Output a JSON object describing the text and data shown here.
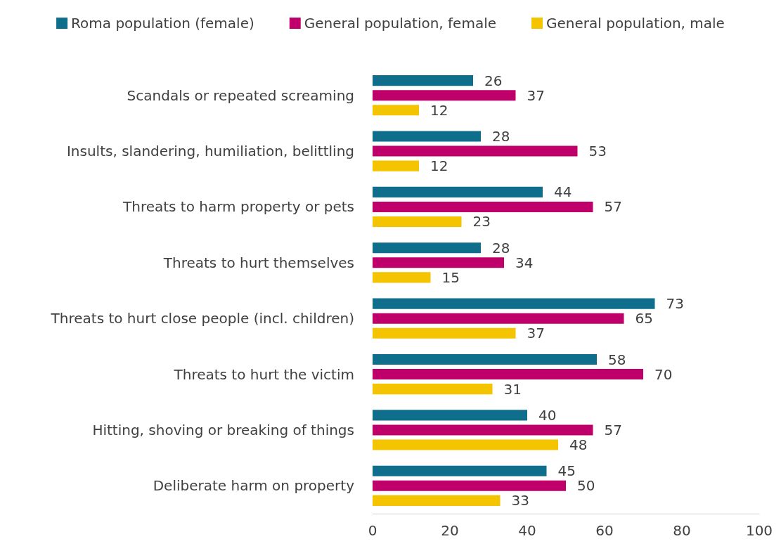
{
  "chart_data": {
    "type": "bar",
    "orientation": "horizontal",
    "categories": [
      "Scandals or repeated screaming",
      "Insults, slandering, humiliation, belittling",
      "Threats to harm property or pets",
      "Threats to hurt themselves",
      "Threats to hurt close people (incl. children)",
      "Threats to hurt the victim",
      "Hitting, shoving or breaking of things",
      "Deliberate harm on property"
    ],
    "series": [
      {
        "name": "Roma population (female)",
        "color": "#0e6e8c",
        "values": [
          26,
          28,
          44,
          28,
          73,
          58,
          40,
          45
        ]
      },
      {
        "name": "General population, female",
        "color": "#c0006a",
        "values": [
          37,
          53,
          57,
          34,
          65,
          70,
          57,
          50
        ]
      },
      {
        "name": "General population, male",
        "color": "#f5c400",
        "values": [
          12,
          12,
          23,
          15,
          37,
          31,
          48,
          33
        ]
      }
    ],
    "xlim": [
      0,
      100
    ],
    "xticks": [
      0,
      20,
      40,
      60,
      80,
      100
    ],
    "data_labels": true,
    "grid": false,
    "legend": "top"
  }
}
